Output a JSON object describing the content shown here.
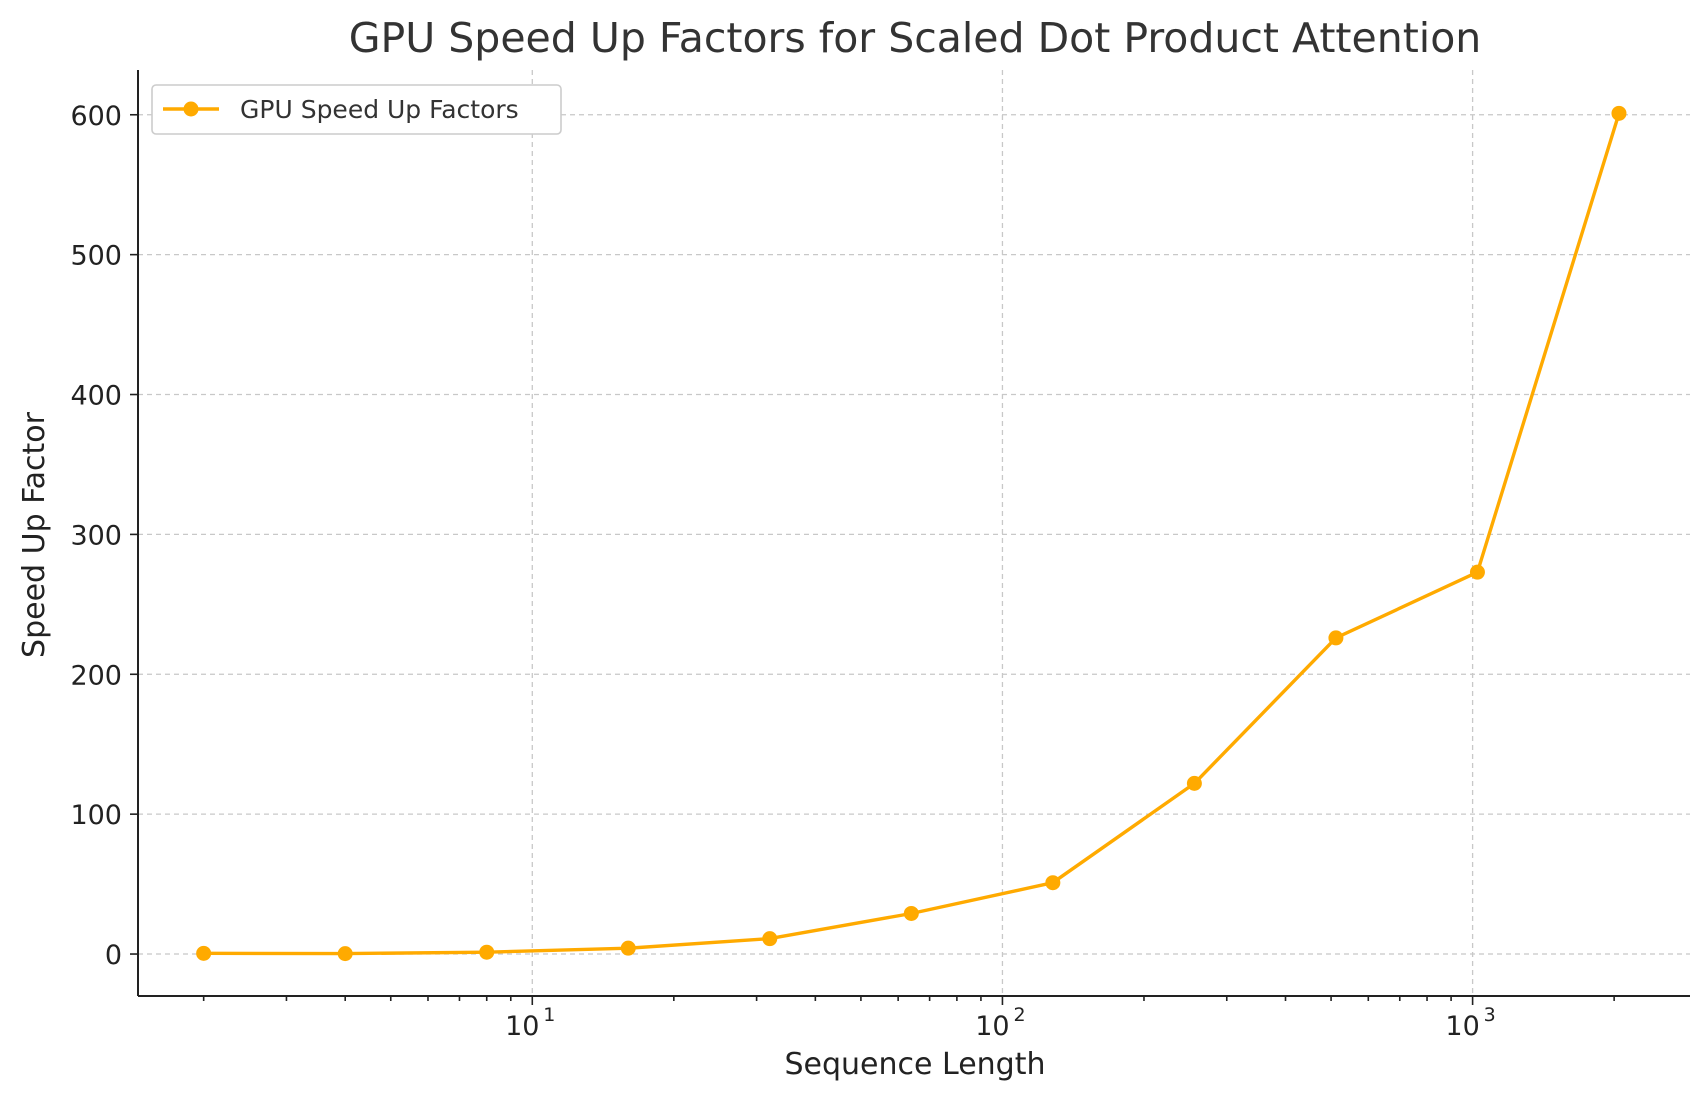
{
  "chart_data": {
    "type": "line",
    "title": "GPU Speed Up Factors for Scaled Dot Product Attention",
    "xlabel": "Sequence Length",
    "ylabel": "Speed Up Factor",
    "x_scale": "log",
    "xlim": [
      1.45,
      2900
    ],
    "ylim": [
      -30,
      632
    ],
    "x_ticks": [
      {
        "value": 10,
        "base": "10",
        "exp": "1"
      },
      {
        "value": 100,
        "base": "10",
        "exp": "2"
      },
      {
        "value": 1000,
        "base": "10",
        "exp": "3"
      }
    ],
    "y_ticks": [
      0,
      100,
      200,
      300,
      400,
      500,
      600
    ],
    "grid": true,
    "legend_position": "top-left",
    "series": [
      {
        "name": "GPU Speed Up Factors",
        "color": "#FFAA00",
        "marker": "circle",
        "x": [
          2,
          4,
          8,
          16,
          32,
          64,
          128,
          256,
          512,
          1024,
          2048
        ],
        "y": [
          0.5,
          0.3,
          1.3,
          4.2,
          11,
          29,
          51,
          122,
          226,
          273,
          601
        ]
      }
    ]
  }
}
